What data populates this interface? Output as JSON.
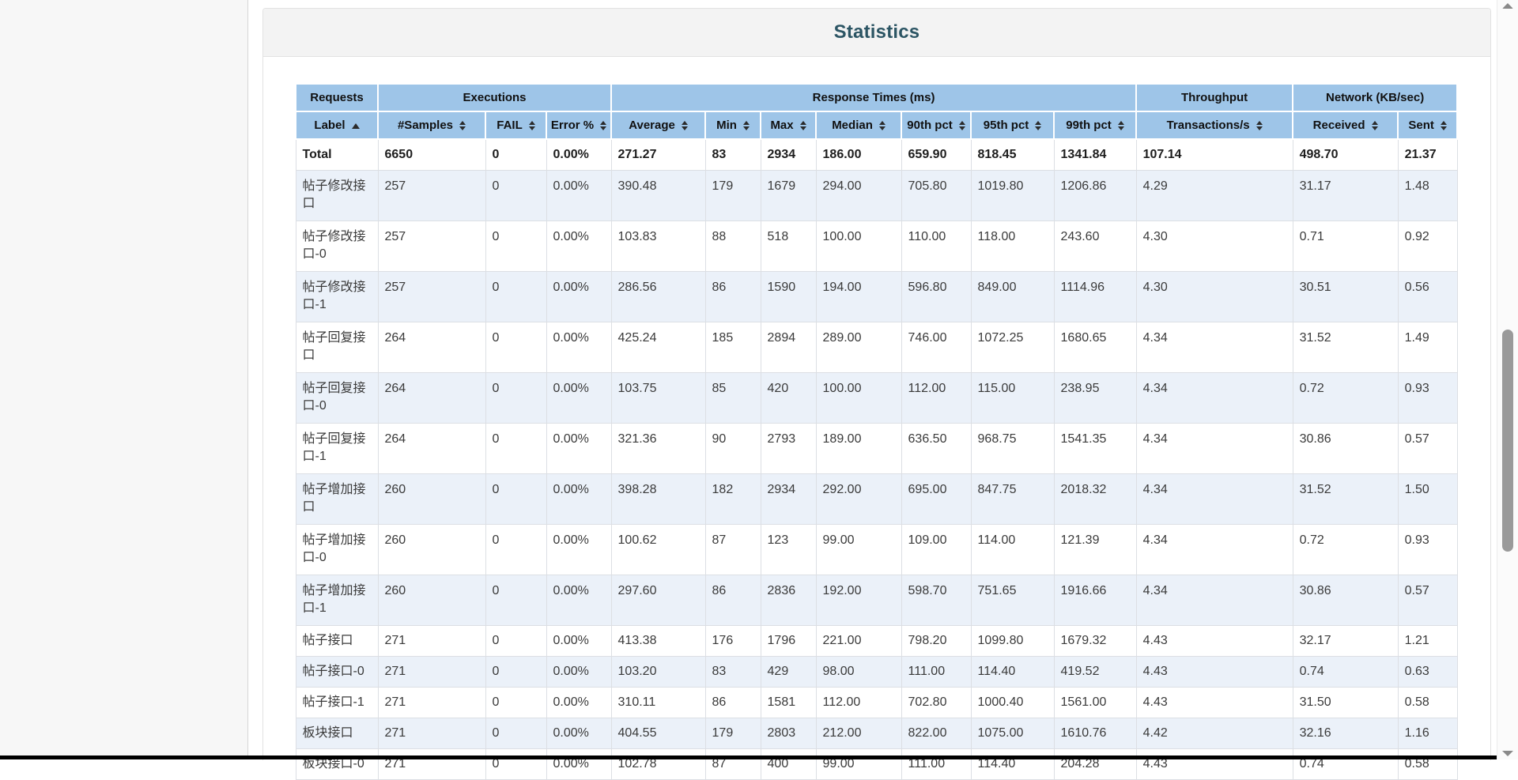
{
  "card": {
    "title": "Statistics"
  },
  "colors": {
    "header_bg": "#9ec5e8",
    "stripe_bg": "#ebf1f9",
    "title": "#2c5564",
    "bottom_bar": "#000000",
    "thumb": "#9a9a9a"
  },
  "table": {
    "group_headers": [
      {
        "label": "Requests",
        "colspan": 1
      },
      {
        "label": "Executions",
        "colspan": 3
      },
      {
        "label": "Response Times (ms)",
        "colspan": 7
      },
      {
        "label": "Throughput",
        "colspan": 1
      },
      {
        "label": "Network (KB/sec)",
        "colspan": 2
      }
    ],
    "columns": [
      {
        "label": "Label",
        "sort": "asc"
      },
      {
        "label": "#Samples",
        "sort": "both"
      },
      {
        "label": "FAIL",
        "sort": "both"
      },
      {
        "label": "Error %",
        "sort": "both"
      },
      {
        "label": "Average",
        "sort": "both"
      },
      {
        "label": "Min",
        "sort": "both"
      },
      {
        "label": "Max",
        "sort": "both"
      },
      {
        "label": "Median",
        "sort": "both"
      },
      {
        "label": "90th pct",
        "sort": "both"
      },
      {
        "label": "95th pct",
        "sort": "both"
      },
      {
        "label": "99th pct",
        "sort": "both"
      },
      {
        "label": "Transactions/s",
        "sort": "both"
      },
      {
        "label": "Received",
        "sort": "both"
      },
      {
        "label": "Sent",
        "sort": "both"
      }
    ],
    "total_row": [
      "Total",
      "6650",
      "0",
      "0.00%",
      "271.27",
      "83",
      "2934",
      "186.00",
      "659.90",
      "818.45",
      "1341.84",
      "107.14",
      "498.70",
      "21.37"
    ],
    "rows": [
      [
        "帖子修改接口",
        "257",
        "0",
        "0.00%",
        "390.48",
        "179",
        "1679",
        "294.00",
        "705.80",
        "1019.80",
        "1206.86",
        "4.29",
        "31.17",
        "1.48"
      ],
      [
        "帖子修改接口-0",
        "257",
        "0",
        "0.00%",
        "103.83",
        "88",
        "518",
        "100.00",
        "110.00",
        "118.00",
        "243.60",
        "4.30",
        "0.71",
        "0.92"
      ],
      [
        "帖子修改接口-1",
        "257",
        "0",
        "0.00%",
        "286.56",
        "86",
        "1590",
        "194.00",
        "596.80",
        "849.00",
        "1114.96",
        "4.30",
        "30.51",
        "0.56"
      ],
      [
        "帖子回复接口",
        "264",
        "0",
        "0.00%",
        "425.24",
        "185",
        "2894",
        "289.00",
        "746.00",
        "1072.25",
        "1680.65",
        "4.34",
        "31.52",
        "1.49"
      ],
      [
        "帖子回复接口-0",
        "264",
        "0",
        "0.00%",
        "103.75",
        "85",
        "420",
        "100.00",
        "112.00",
        "115.00",
        "238.95",
        "4.34",
        "0.72",
        "0.93"
      ],
      [
        "帖子回复接口-1",
        "264",
        "0",
        "0.00%",
        "321.36",
        "90",
        "2793",
        "189.00",
        "636.50",
        "968.75",
        "1541.35",
        "4.34",
        "30.86",
        "0.57"
      ],
      [
        "帖子增加接口",
        "260",
        "0",
        "0.00%",
        "398.28",
        "182",
        "2934",
        "292.00",
        "695.00",
        "847.75",
        "2018.32",
        "4.34",
        "31.52",
        "1.50"
      ],
      [
        "帖子增加接口-0",
        "260",
        "0",
        "0.00%",
        "100.62",
        "87",
        "123",
        "99.00",
        "109.00",
        "114.00",
        "121.39",
        "4.34",
        "0.72",
        "0.93"
      ],
      [
        "帖子增加接口-1",
        "260",
        "0",
        "0.00%",
        "297.60",
        "86",
        "2836",
        "192.00",
        "598.70",
        "751.65",
        "1916.66",
        "4.34",
        "30.86",
        "0.57"
      ],
      [
        "帖子接口",
        "271",
        "0",
        "0.00%",
        "413.38",
        "176",
        "1796",
        "221.00",
        "798.20",
        "1099.80",
        "1679.32",
        "4.43",
        "32.17",
        "1.21"
      ],
      [
        "帖子接口-0",
        "271",
        "0",
        "0.00%",
        "103.20",
        "83",
        "429",
        "98.00",
        "111.00",
        "114.40",
        "419.52",
        "4.43",
        "0.74",
        "0.63"
      ],
      [
        "帖子接口-1",
        "271",
        "0",
        "0.00%",
        "310.11",
        "86",
        "1581",
        "112.00",
        "702.80",
        "1000.40",
        "1561.00",
        "4.43",
        "31.50",
        "0.58"
      ],
      [
        "板块接口",
        "271",
        "0",
        "0.00%",
        "404.55",
        "179",
        "2803",
        "212.00",
        "822.00",
        "1075.00",
        "1610.76",
        "4.42",
        "32.16",
        "1.16"
      ],
      [
        "板块接口-0",
        "271",
        "0",
        "0.00%",
        "102.78",
        "87",
        "400",
        "99.00",
        "111.00",
        "114.40",
        "204.28",
        "4.43",
        "0.74",
        "0.58"
      ]
    ]
  }
}
